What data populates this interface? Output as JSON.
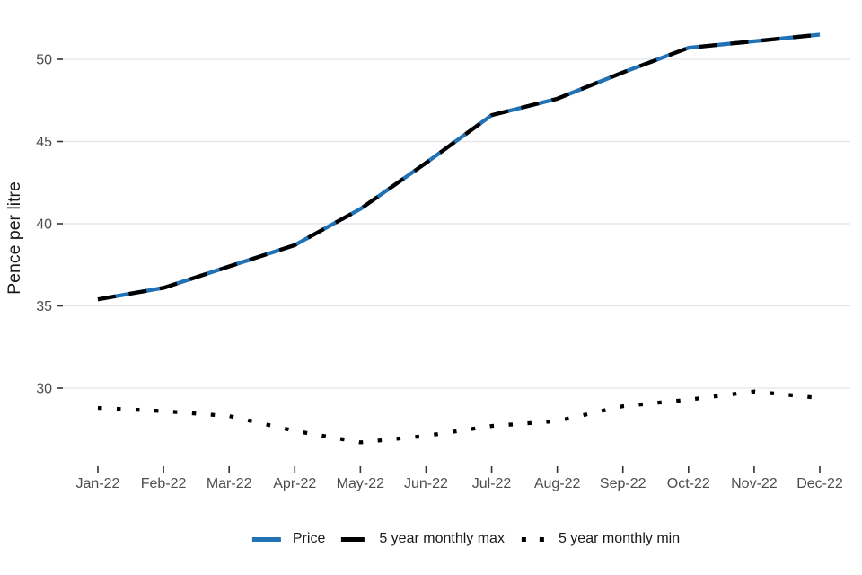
{
  "chart_data": {
    "type": "line",
    "title": "",
    "xlabel": "",
    "ylabel": "Pence per litre",
    "categories": [
      "Jan-22",
      "Feb-22",
      "Mar-22",
      "Apr-22",
      "May-22",
      "Jun-22",
      "Jul-22",
      "Aug-22",
      "Sep-22",
      "Oct-22",
      "Nov-22",
      "Dec-22"
    ],
    "y_ticks": [
      30,
      35,
      40,
      45,
      50
    ],
    "ylim": [
      25.3,
      52.8
    ],
    "grid": "horizontal gridlines only, light gray",
    "legend_position": "bottom center",
    "series": [
      {
        "name": "Price",
        "style": "solid",
        "color": "#2171b5",
        "values": [
          35.4,
          36.1,
          37.4,
          38.7,
          40.9,
          43.7,
          46.6,
          47.6,
          49.2,
          50.7,
          51.1,
          51.5
        ]
      },
      {
        "name": "5 year monthly max",
        "style": "dashed",
        "color": "#000000",
        "values": [
          35.4,
          36.1,
          37.4,
          38.7,
          40.9,
          43.7,
          46.6,
          47.6,
          49.2,
          50.7,
          51.1,
          51.5
        ]
      },
      {
        "name": "5 year monthly min",
        "style": "dotted",
        "color": "#000000",
        "values": [
          28.8,
          28.6,
          28.3,
          27.4,
          26.7,
          27.1,
          27.7,
          28.0,
          28.9,
          29.3,
          29.8,
          29.4
        ]
      }
    ]
  },
  "colors": {
    "background": "#ffffff",
    "grid": "#e4e4e4",
    "tick": "#333333",
    "tick_label": "#4d4d4d",
    "axis_title": "#1a1a1a"
  }
}
